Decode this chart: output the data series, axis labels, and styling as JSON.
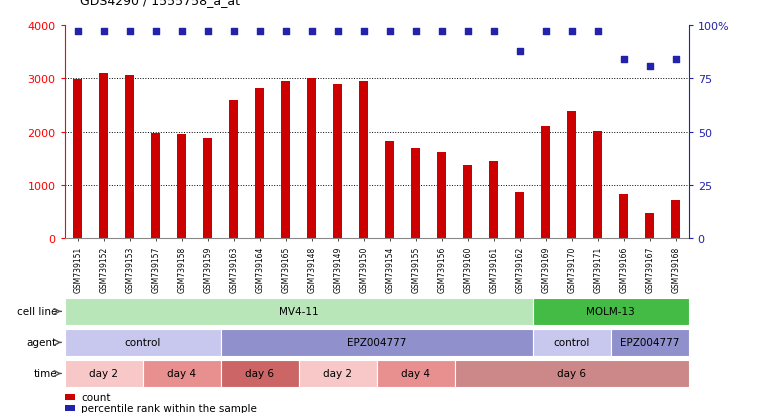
{
  "title": "GDS4290 / 1555758_a_at",
  "samples": [
    "GSM739151",
    "GSM739152",
    "GSM739153",
    "GSM739157",
    "GSM739158",
    "GSM739159",
    "GSM739163",
    "GSM739164",
    "GSM739165",
    "GSM739148",
    "GSM739149",
    "GSM739150",
    "GSM739154",
    "GSM739155",
    "GSM739156",
    "GSM739160",
    "GSM739161",
    "GSM739162",
    "GSM739169",
    "GSM739170",
    "GSM739171",
    "GSM739166",
    "GSM739167",
    "GSM739168"
  ],
  "counts": [
    2980,
    3100,
    3060,
    1980,
    1960,
    1890,
    2600,
    2820,
    2960,
    3010,
    2900,
    2960,
    1830,
    1700,
    1620,
    1380,
    1455,
    870,
    2110,
    2390,
    2010,
    830,
    475,
    710
  ],
  "percentile_ranks": [
    97,
    97,
    97,
    97,
    97,
    97,
    97,
    97,
    97,
    97,
    97,
    97,
    97,
    97,
    97,
    97,
    97,
    88,
    97,
    97,
    97,
    84,
    81,
    84
  ],
  "bar_color": "#cc0000",
  "dot_color": "#2222aa",
  "ylim_left": [
    0,
    4000
  ],
  "ylim_right": [
    0,
    100
  ],
  "yticks_left": [
    0,
    1000,
    2000,
    3000,
    4000
  ],
  "yticks_right": [
    0,
    25,
    50,
    75,
    100
  ],
  "ytick_labels_right": [
    "0",
    "25",
    "50",
    "75",
    "100%"
  ],
  "cell_line_row": {
    "label": "cell line",
    "segments": [
      {
        "text": "MV4-11",
        "start": 0,
        "end": 18,
        "color": "#b8e6b8"
      },
      {
        "text": "MOLM-13",
        "start": 18,
        "end": 24,
        "color": "#44bb44"
      }
    ]
  },
  "agent_row": {
    "label": "agent",
    "segments": [
      {
        "text": "control",
        "start": 0,
        "end": 6,
        "color": "#c8c8ee"
      },
      {
        "text": "EPZ004777",
        "start": 6,
        "end": 18,
        "color": "#9090cc"
      },
      {
        "text": "control",
        "start": 18,
        "end": 21,
        "color": "#c8c8ee"
      },
      {
        "text": "EPZ004777",
        "start": 21,
        "end": 24,
        "color": "#9090cc"
      }
    ]
  },
  "time_row": {
    "label": "time",
    "segments": [
      {
        "text": "day 2",
        "start": 0,
        "end": 3,
        "color": "#f8c8c8"
      },
      {
        "text": "day 4",
        "start": 3,
        "end": 6,
        "color": "#e89090"
      },
      {
        "text": "day 6",
        "start": 6,
        "end": 9,
        "color": "#cc6666"
      },
      {
        "text": "day 2",
        "start": 9,
        "end": 12,
        "color": "#f8c8c8"
      },
      {
        "text": "day 4",
        "start": 12,
        "end": 15,
        "color": "#e89090"
      },
      {
        "text": "day 6",
        "start": 15,
        "end": 24,
        "color": "#cc8888"
      }
    ]
  },
  "legend_count_color": "#cc0000",
  "legend_rank_color": "#2222aa",
  "background_color": "#ffffff"
}
